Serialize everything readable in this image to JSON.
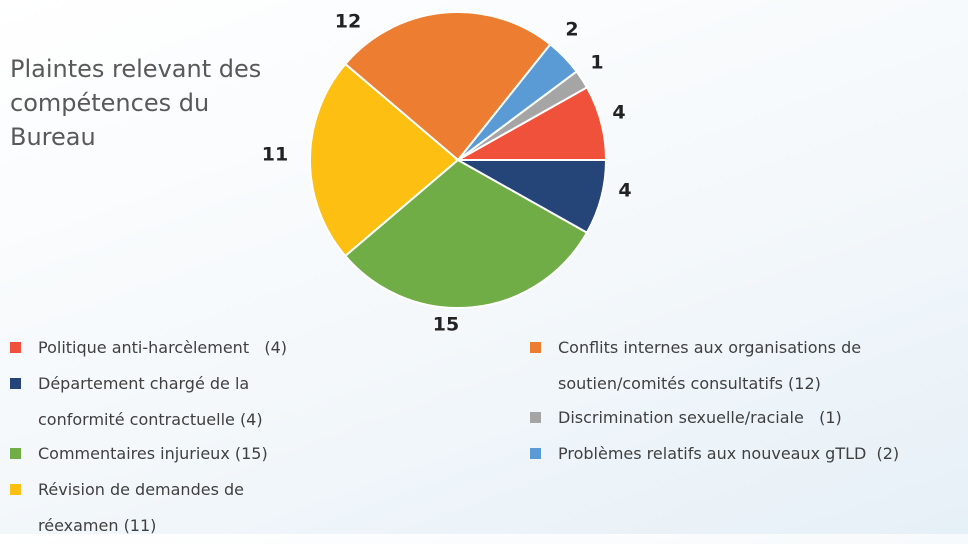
{
  "chart_data": {
    "type": "pie",
    "title": "Plaintes relevant des compétences du Bureau",
    "categories": [
      "Politique anti-harcèlement   (4)",
      "Discrimination sexuelle/raciale   (1)",
      "Problèmes relatifs aux nouveaux gTLD  (2)",
      "Conflits internes aux organisations de soutien/comités consultatifs (12)",
      "Révision de demandes de réexamen (11)",
      "Commentaires injurieux (15)",
      "Département chargé de la conformité contractuelle (4)"
    ],
    "values": [
      4,
      1,
      2,
      12,
      11,
      15,
      4
    ],
    "colors": [
      "#f0513a",
      "#a5a5a5",
      "#5b9bd5",
      "#ed7d31",
      "#fcbf12",
      "#70ad47",
      "#254478"
    ]
  }
}
